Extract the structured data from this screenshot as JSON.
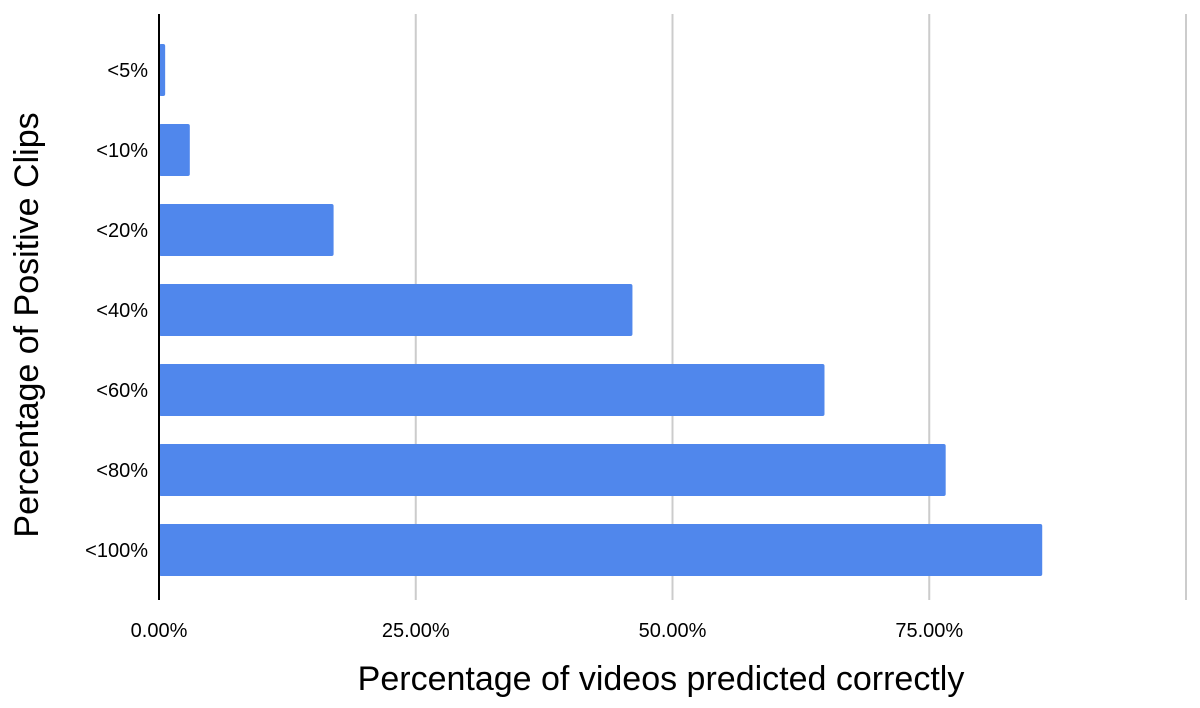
{
  "chart_data": {
    "type": "bar",
    "orientation": "horizontal",
    "categories": [
      "<5%",
      "<10%",
      "<20%",
      "<40%",
      "<60%",
      "<80%",
      "<100%"
    ],
    "values": [
      0.6,
      3.0,
      17.0,
      46.1,
      64.8,
      76.6,
      86.0
    ],
    "xlabel": "Percentage of videos predicted correctly",
    "ylabel": "Percentage of Positive Clips",
    "xlim": [
      0,
      100
    ],
    "xticks": [
      0,
      25,
      50,
      75,
      100
    ],
    "xtick_labels": [
      "0.00%",
      "25.00%",
      "50.00%",
      "75.00%",
      ""
    ],
    "grid": "vertical",
    "legend": "none",
    "colors": {
      "bar": "#5087ec",
      "grid": "#cccccc",
      "axis": "#000000"
    }
  }
}
